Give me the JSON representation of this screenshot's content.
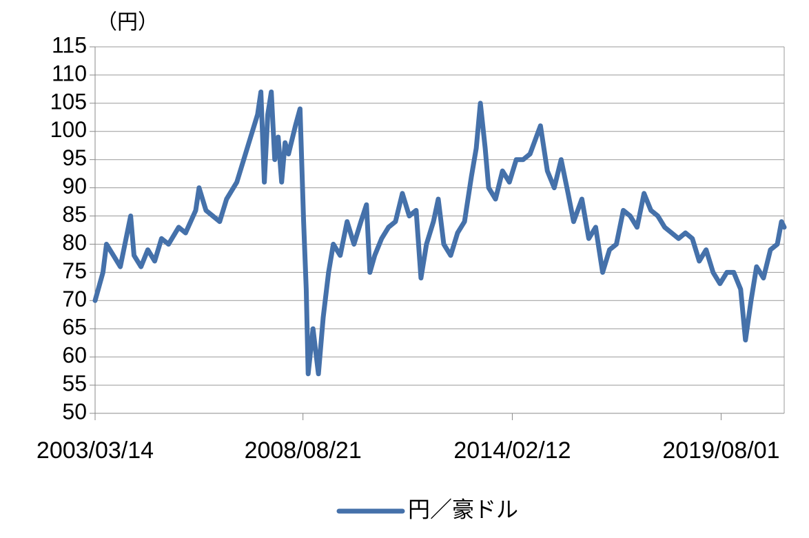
{
  "chart_data": {
    "type": "line",
    "y_label": "（円）",
    "x": [
      "2003/03/14",
      "2003/05/28",
      "2003/07/01",
      "2003/09/05",
      "2003/11/10",
      "2004/01/15",
      "2004/02/17",
      "2004/03/20",
      "2004/05/26",
      "2004/07/30",
      "2004/10/04",
      "2004/12/08",
      "2005/02/13",
      "2005/05/21",
      "2005/07/26",
      "2005/10/31",
      "2005/12/02",
      "2006/02/06",
      "2006/04/12",
      "2006/06/17",
      "2006/08/22",
      "2006/11/28",
      "2007/02/02",
      "2007/04/09",
      "2007/06/14",
      "2007/07/16",
      "2007/08/18",
      "2007/09/20",
      "2007/10/23",
      "2007/11/25",
      "2007/12/28",
      "2008/01/30",
      "2008/03/03",
      "2008/04/05",
      "2008/06/10",
      "2008/07/24",
      "2008/08/27",
      "2008/09/21",
      "2008/10/10",
      "2008/11/25",
      "2009/01/16",
      "2009/03/02",
      "2009/04/23",
      "2009/06/07",
      "2009/08/12",
      "2009/10/17",
      "2009/12/22",
      "2010/02/26",
      "2010/04/20",
      "2010/05/23",
      "2010/07/08",
      "2010/09/12",
      "2010/11/17",
      "2011/01/22",
      "2011/03/29",
      "2011/06/03",
      "2011/08/08",
      "2011/09/23",
      "2011/11/15",
      "2012/01/20",
      "2012/03/06",
      "2012/04/28",
      "2012/07/03",
      "2012/09/07",
      "2012/11/12",
      "2013/01/17",
      "2013/03/04",
      "2013/04/13",
      "2013/05/29",
      "2013/07/01",
      "2013/09/05",
      "2013/11/10",
      "2014/01/15",
      "2014/03/22",
      "2014/05/27",
      "2014/08/01",
      "2014/11/08",
      "2015/01/13",
      "2015/03/20",
      "2015/05/25",
      "2015/07/30",
      "2015/09/21",
      "2015/12/09",
      "2016/02/13",
      "2016/04/19",
      "2016/06/24",
      "2016/08/29",
      "2016/11/03",
      "2017/01/08",
      "2017/03/15",
      "2017/05/20",
      "2017/07/25",
      "2017/09/29",
      "2017/12/04",
      "2018/02/08",
      "2018/04/15",
      "2018/06/20",
      "2018/08/25",
      "2018/10/30",
      "2019/01/04",
      "2019/03/11",
      "2019/05/16",
      "2019/07/21",
      "2019/09/25",
      "2019/11/30",
      "2020/02/04",
      "2020/03/21",
      "2020/05/13",
      "2020/07/05",
      "2020/09/09",
      "2020/11/14",
      "2021/01/19",
      "2021/02/28",
      "2021/03/26"
    ],
    "series": [
      {
        "name": "円／豪ドル",
        "color": "#4571aa",
        "values": [
          70,
          75,
          80,
          78,
          76,
          82,
          85,
          78,
          76,
          79,
          77,
          81,
          80,
          83,
          82,
          86,
          90,
          86,
          85,
          84,
          88,
          91,
          95,
          99,
          103,
          107,
          91,
          103,
          107,
          95,
          99,
          91,
          98,
          96,
          101,
          104,
          84,
          72,
          57,
          65,
          57,
          67,
          75,
          80,
          78,
          84,
          80,
          84,
          87,
          75,
          78,
          81,
          83,
          84,
          89,
          85,
          86,
          74,
          80,
          84,
          88,
          80,
          78,
          82,
          84,
          92,
          97,
          105,
          97,
          90,
          88,
          93,
          91,
          95,
          95,
          96,
          101,
          93,
          90,
          95,
          89,
          84,
          88,
          81,
          83,
          75,
          79,
          80,
          86,
          85,
          83,
          89,
          86,
          85,
          83,
          82,
          81,
          82,
          81,
          77,
          79,
          75,
          73,
          75,
          75,
          72,
          63,
          70,
          76,
          74,
          79,
          80,
          84,
          83
        ]
      }
    ],
    "xlim": [
      "2003/03/14",
      "2021/03/26"
    ],
    "xticks": [
      "2003/03/14",
      "2008/08/21",
      "2014/02/12",
      "2019/08/01"
    ],
    "ylim": [
      50,
      115
    ],
    "yticks": [
      50,
      55,
      60,
      65,
      70,
      75,
      80,
      85,
      90,
      95,
      100,
      105,
      110,
      115
    ],
    "grid": true,
    "legend": "bottom"
  }
}
